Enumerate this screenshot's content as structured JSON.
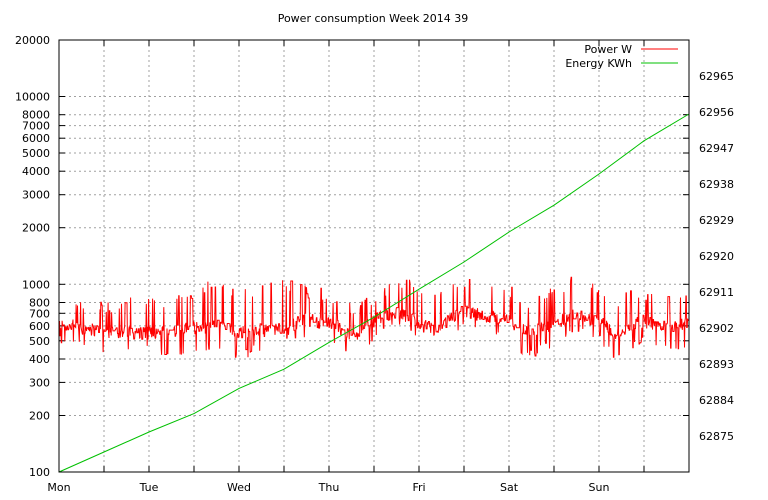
{
  "chart_data": {
    "type": "line",
    "title": "Power consumption Week 2014 39",
    "xlabel": "",
    "ylabel": "",
    "x_categories": [
      "Mon",
      "Tue",
      "Wed",
      "Thu",
      "Fri",
      "Sat",
      "Sun"
    ],
    "x_range_days": [
      0,
      7
    ],
    "y_left": {
      "scale": "log",
      "range": [
        100,
        20000
      ],
      "ticks": [
        100,
        200,
        300,
        400,
        500,
        600,
        700,
        800,
        1000,
        2000,
        3000,
        4000,
        5000,
        6000,
        7000,
        8000,
        10000,
        20000
      ],
      "tick_labels": [
        "100",
        "200",
        "300",
        "400",
        "500",
        "600",
        "700",
        "800",
        "1000",
        "2000",
        "3000",
        "4000",
        "5000",
        "6000",
        "7000",
        "8000",
        "10000",
        "20000"
      ]
    },
    "y_right": {
      "scale": "linear",
      "range": [
        62866,
        62974
      ],
      "ticks": [
        62875,
        62884,
        62893,
        62902,
        62911,
        62920,
        62929,
        62938,
        62947,
        62956,
        62965
      ],
      "tick_labels": [
        "62875",
        "62884",
        "62893",
        "62902",
        "62911",
        "62920",
        "62929",
        "62938",
        "62947",
        "62956",
        "62965"
      ]
    },
    "grid": true,
    "legend_position": "top-right",
    "series": [
      {
        "name": "Power W",
        "color": "#ff0000",
        "axis": "left",
        "profile_x": [
          0,
          0.5,
          1.0,
          1.4,
          1.75,
          2.0,
          2.45,
          2.75,
          3.1,
          3.25,
          3.55,
          3.75,
          4.0,
          4.2,
          4.45,
          4.75,
          5.0,
          5.2,
          5.45,
          5.7,
          6.0,
          6.2,
          6.45,
          6.75,
          7.0
        ],
        "profile_baseline": [
          620,
          560,
          550,
          580,
          600,
          560,
          580,
          650,
          600,
          520,
          660,
          720,
          620,
          560,
          720,
          680,
          640,
          560,
          600,
          680,
          640,
          540,
          640,
          600,
          620
        ],
        "profile_peak": [
          900,
          820,
          880,
          900,
          1100,
          960,
          1100,
          1000,
          900,
          800,
          880,
          1150,
          1000,
          900,
          1100,
          1050,
          1000,
          850,
          950,
          1100,
          1000,
          880,
          980,
          900,
          920
        ],
        "profile_low": [
          520,
          460,
          470,
          430,
          480,
          420,
          520,
          560,
          500,
          420,
          560,
          600,
          520,
          430,
          600,
          560,
          520,
          420,
          480,
          580,
          520,
          420,
          520,
          460,
          500
        ]
      },
      {
        "name": "Energy KWh",
        "color": "#00c000",
        "axis": "right",
        "x": [
          0,
          0.5,
          1.0,
          1.5,
          2.0,
          2.5,
          3.0,
          3.5,
          4.0,
          4.5,
          5.0,
          5.5,
          6.0,
          6.5,
          7.0
        ],
        "y": [
          62866,
          62871,
          62876,
          62880.6,
          62886.9,
          62891.7,
          62898.4,
          62904.7,
          62911.7,
          62918.5,
          62926,
          62932.7,
          62940.5,
          62948.8,
          62955.5
        ]
      }
    ]
  }
}
